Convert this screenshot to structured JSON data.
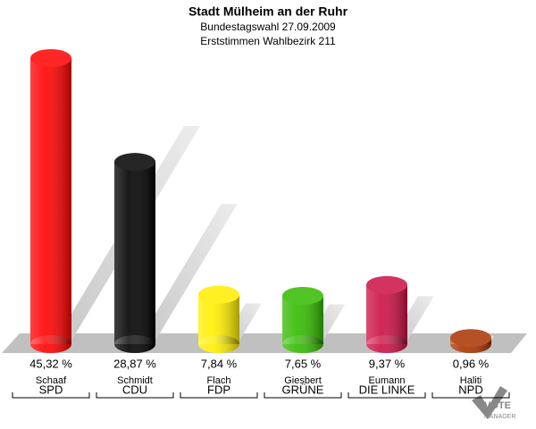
{
  "chart_data": {
    "type": "bar3d",
    "title": "Stadt Mülheim an der Ruhr",
    "subtitle": "Bundestagswahl 27.09.2009",
    "subtitle2": "Erststimmen Wahlbezirk 211",
    "categories": [
      "SPD",
      "CDU",
      "FDP",
      "GRÜNE",
      "DIE LINKE",
      "NPD"
    ],
    "candidates": [
      "Schaaf",
      "Schmidt",
      "Flach",
      "Giesbert",
      "Eumann",
      "Haliti"
    ],
    "values": [
      45.32,
      28.87,
      7.84,
      7.65,
      9.37,
      0.96
    ],
    "value_labels": [
      "45,32 %",
      "28,87 %",
      "7,84 %",
      "7,65 %",
      "9,37 %",
      "0,96 %"
    ],
    "colors": [
      "#ff0000",
      "#000000",
      "#ffee00",
      "#33bb00",
      "#cc1144",
      "#aa3300"
    ]
  },
  "logo": {
    "line1": "VOTE",
    "line2": "MANAGER"
  }
}
